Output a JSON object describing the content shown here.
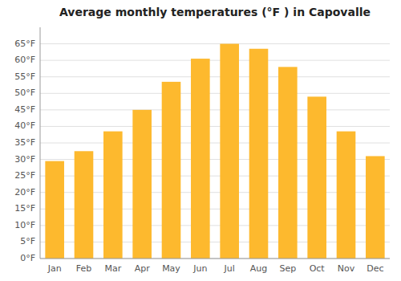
{
  "chart_data": {
    "type": "bar",
    "title": "Average monthly temperatures (°F ) in Capovalle",
    "categories": [
      "Jan",
      "Feb",
      "Mar",
      "Apr",
      "May",
      "Jun",
      "Jul",
      "Aug",
      "Sep",
      "Oct",
      "Nov",
      "Dec"
    ],
    "values": [
      29.5,
      32.5,
      38.5,
      45.0,
      53.5,
      60.5,
      65.0,
      63.5,
      58.0,
      49.0,
      38.5,
      31.0
    ],
    "color": "#FDB92E",
    "ylim": [
      0,
      70
    ],
    "yticks": [
      {
        "value": 0,
        "label": "0°F"
      },
      {
        "value": 5,
        "label": "5°F"
      },
      {
        "value": 10,
        "label": "10°F"
      },
      {
        "value": 15,
        "label": "15°F"
      },
      {
        "value": 20,
        "label": "20°F"
      },
      {
        "value": 25,
        "label": "25°F"
      },
      {
        "value": 30,
        "label": "30°F"
      },
      {
        "value": 35,
        "label": "35°F"
      },
      {
        "value": 40,
        "label": "40°F"
      },
      {
        "value": 45,
        "label": "45°F"
      },
      {
        "value": 50,
        "label": "50°F"
      },
      {
        "value": 55,
        "label": "55°F"
      },
      {
        "value": 60,
        "label": "60°F"
      },
      {
        "value": 65,
        "label": "65°F"
      }
    ],
    "grid": true
  }
}
